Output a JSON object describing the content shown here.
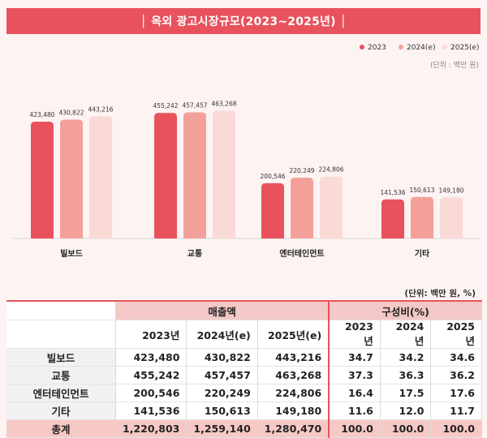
{
  "title": "│ 옥외 광고시장규모(2023~2025년) │",
  "unit_note_chart": "(단위 : 백만 원)",
  "unit_note_table": "(단위: 백만 원, %)",
  "colors": {
    "s2023": "#e8525d",
    "s2024": "#f3a09a",
    "s2025": "#fadad6",
    "accent": "#e8525d"
  },
  "chart_data": {
    "type": "bar",
    "categories": [
      "빌보드",
      "교통",
      "엔터테인먼트",
      "기타"
    ],
    "series": [
      {
        "name": "2023",
        "values": [
          423480,
          455242,
          200546,
          141536
        ],
        "labels": [
          "423,480",
          "455,242",
          "200,546",
          "141,536"
        ]
      },
      {
        "name": "2024(e)",
        "values": [
          430822,
          457457,
          220249,
          150613
        ],
        "labels": [
          "430,822",
          "457,457",
          "220,249",
          "150,613"
        ]
      },
      {
        "name": "2025(e)",
        "values": [
          443216,
          463268,
          224806,
          149180
        ],
        "labels": [
          "443,216",
          "463,268",
          "224,806",
          "149,180"
        ]
      }
    ],
    "legend_position": "top-right",
    "ylim": [
      0,
      500000
    ],
    "grid": false
  },
  "table": {
    "group_headers": [
      "매출액",
      "구성비(%)"
    ],
    "year_headers": [
      "2023년",
      "2024년(e)",
      "2025년(e)",
      "2023년",
      "2024년",
      "2025년"
    ],
    "rows": [
      {
        "label": "빌보드",
        "values": [
          "423,480",
          "430,822",
          "443,216",
          "34.7",
          "34.2",
          "34.6"
        ]
      },
      {
        "label": "교통",
        "values": [
          "455,242",
          "457,457",
          "463,268",
          "37.3",
          "36.3",
          "36.2"
        ]
      },
      {
        "label": "엔터테인먼트",
        "values": [
          "200,546",
          "220,249",
          "224,806",
          "16.4",
          "17.5",
          "17.6"
        ]
      },
      {
        "label": "기타",
        "values": [
          "141,536",
          "150,613",
          "149,180",
          "11.6",
          "12.0",
          "11.7"
        ]
      }
    ],
    "total": {
      "label": "총계",
      "values": [
        "1,220,803",
        "1,259,140",
        "1,280,470",
        "100.0",
        "100.0",
        "100.0"
      ]
    }
  }
}
